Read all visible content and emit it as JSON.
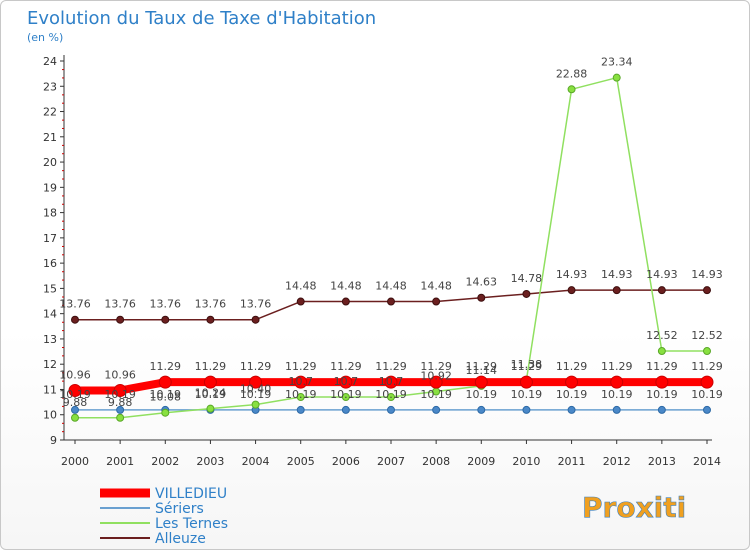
{
  "chart_data": {
    "type": "line",
    "title": "Evolution du Taux de Taxe d'Habitation",
    "subtitle": "(en %)",
    "x": [
      "2000",
      "2001",
      "2002",
      "2003",
      "2004",
      "2005",
      "2006",
      "2007",
      "2008",
      "2009",
      "2010",
      "2011",
      "2012",
      "2013",
      "2014"
    ],
    "ylim": [
      9,
      24
    ],
    "yticks": [
      "9",
      "10",
      "11",
      "12",
      "13",
      "14",
      "15",
      "16",
      "17",
      "18",
      "19",
      "20",
      "21",
      "22",
      "23",
      "24"
    ],
    "grid": false,
    "legend_position": "bottom-left",
    "series": [
      {
        "name": "VILLEDIEU",
        "color": "#ff0000",
        "values": [
          10.96,
          10.96,
          11.29,
          11.29,
          11.29,
          11.29,
          11.29,
          11.29,
          11.29,
          11.29,
          11.29,
          11.29,
          11.29,
          11.29,
          11.29
        ],
        "labels": [
          "10.96",
          "10.96",
          "11.29",
          "11.29",
          "11.29",
          "11.29",
          "11.29",
          "11.29",
          "11.29",
          "11.29",
          "11.29",
          "11.29",
          "11.29",
          "11.29",
          "11.29"
        ]
      },
      {
        "name": "Sériers",
        "color": "#6aa0d0",
        "values": [
          10.19,
          10.19,
          10.19,
          10.19,
          10.19,
          10.19,
          10.19,
          10.19,
          10.19,
          10.19,
          10.19,
          10.19,
          10.19,
          10.19,
          10.19
        ],
        "labels": [
          "10.19",
          "10.19",
          "10.19",
          "10.19",
          "10.19",
          "10.19",
          "10.19",
          "10.19",
          "10.19",
          "10.19",
          "10.19",
          "10.19",
          "10.19",
          "10.19",
          "10.19"
        ]
      },
      {
        "name": "Les Ternes",
        "color": "#90e060",
        "values": [
          9.88,
          9.88,
          10.08,
          10.24,
          10.4,
          10.7,
          10.7,
          10.7,
          10.92,
          11.14,
          11.38,
          22.88,
          23.34,
          12.52,
          12.52
        ],
        "labels": [
          "9.88",
          "9.88",
          "10.08",
          "10.24",
          "10.40",
          "10.7",
          "10.7",
          "10.7",
          "10.92",
          "11.14",
          "11.38",
          "22.88",
          "23.34",
          "12.52",
          "12.52"
        ]
      },
      {
        "name": "Alleuze",
        "color": "#6b1f1f",
        "values": [
          13.76,
          13.76,
          13.76,
          13.76,
          13.76,
          14.48,
          14.48,
          14.48,
          14.48,
          14.63,
          14.78,
          14.93,
          14.93,
          14.93,
          14.93
        ],
        "labels": [
          "13.76",
          "13.76",
          "13.76",
          "13.76",
          "13.76",
          "14.48",
          "14.48",
          "14.48",
          "14.48",
          "14.63",
          "14.78",
          "14.93",
          "14.93",
          "14.93",
          "14.93"
        ]
      }
    ]
  },
  "logo": {
    "text": "Proxiti"
  }
}
